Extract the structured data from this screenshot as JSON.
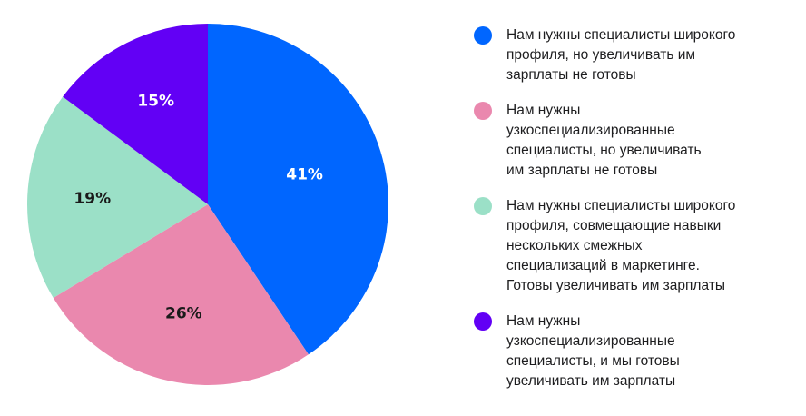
{
  "chart_data": {
    "type": "pie",
    "title": "",
    "start_angle_deg": 0,
    "direction": "clockwise",
    "legend_position": "right",
    "slices": [
      {
        "label": "Нам нужны специалисты широкого профиля, но увеличивать им зарплаты не готовы",
        "value": 41,
        "display": "41%",
        "color": "#0066ff",
        "label_color": "#ffffff"
      },
      {
        "label": "Нам нужны узкоспециализированные специалисты, но увеличивать им зарплаты не готовы",
        "value": 26,
        "display": "26%",
        "color": "#ea88ae",
        "label_color": "#1a1a1a"
      },
      {
        "label": "Нам нужны специалисты широкого профиля, совмещающие навыки нескольких смежных специализаций в маркетинге. Готовы увеличивать им зарплаты",
        "value": 19,
        "display": "19%",
        "color": "#9be0c7",
        "label_color": "#1a1a1a"
      },
      {
        "label": "Нам нужны узкоспециализированные специалисты, и мы готовы увеличивать им зарплаты",
        "value": 15,
        "display": "15%",
        "color": "#6200f5",
        "label_color": "#ffffff"
      }
    ]
  },
  "legend": {
    "items": [
      {
        "text": "Нам нужны специалисты широкого\nпрофиля, но увеличивать им\nзарплаты не готовы",
        "color": "#0066ff"
      },
      {
        "text": "Нам нужны\nузкоспециализированные\nспециалисты, но увеличивать\nим зарплаты не готовы",
        "color": "#ea88ae"
      },
      {
        "text": "Нам нужны специалисты широкого\nпрофиля, совмещающие навыки\nнескольких смежных\nспециализаций в маркетинге.\nГотовы увеличивать им зарплаты",
        "color": "#9be0c7"
      },
      {
        "text": "Нам нужны\nузкоспециализированные\nспециалисты, и мы готовы\nувеличивать им зарплаты",
        "color": "#6200f5"
      }
    ]
  }
}
